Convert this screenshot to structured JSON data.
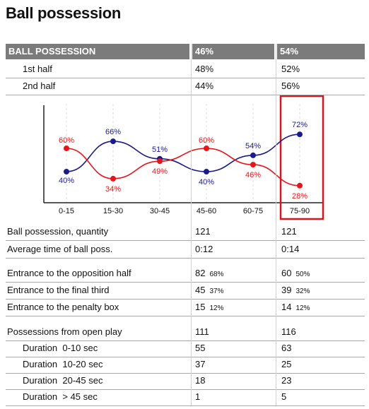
{
  "page": {
    "title": "Ball possession"
  },
  "header": {
    "label": "BALL POSSESSION",
    "team1": "46%",
    "team2": "54%"
  },
  "halves": [
    {
      "label": "1st half",
      "team1": "48%",
      "team2": "52%"
    },
    {
      "label": "2nd half",
      "team1": "44%",
      "team2": "56%"
    }
  ],
  "chart_data": {
    "type": "line",
    "categories": [
      "0-15",
      "15-30",
      "30-45",
      "45-60",
      "60-75",
      "75-90"
    ],
    "series": [
      {
        "values": [
          40,
          66,
          51,
          40,
          54,
          72
        ],
        "labels": [
          "40%",
          "66%",
          "51%",
          "40%",
          "54%",
          "72%"
        ],
        "color": "#1a1a8a"
      },
      {
        "values": [
          60,
          34,
          49,
          60,
          46,
          28
        ],
        "labels": [
          "60%",
          "34%",
          "49%",
          "60%",
          "46%",
          "28%"
        ],
        "color": "#e8141b"
      }
    ],
    "highlighted_category": "75-90",
    "highlight_color": "#d6161e",
    "grid": "vertical dashed",
    "title": "",
    "xlabel": "",
    "ylabel": ""
  },
  "stats_group1": [
    {
      "label": "Ball possession, quantity",
      "team1": "121",
      "team2": "121"
    },
    {
      "label": "Average time of ball poss.",
      "team1": "0:12",
      "team2": "0:14"
    }
  ],
  "stats_group2": [
    {
      "label": "Entrance to the opposition half",
      "team1": "82",
      "team1_pct": "68%",
      "team2": "60",
      "team2_pct": "50%"
    },
    {
      "label": "Entrance to the final third",
      "team1": "45",
      "team1_pct": "37%",
      "team2": "39",
      "team2_pct": "32%"
    },
    {
      "label": "Entrance to the penalty box",
      "team1": "15",
      "team1_pct": "12%",
      "team2": "14",
      "team2_pct": "12%"
    }
  ],
  "stats_group3": [
    {
      "label": "Possessions from open play",
      "team1": "111",
      "team2": "116"
    },
    {
      "label": "Duration  0-10 sec",
      "team1": "55",
      "team2": "63"
    },
    {
      "label": "Duration  10-20 sec",
      "team1": "37",
      "team2": "25"
    },
    {
      "label": "Duration  20-45 sec",
      "team1": "18",
      "team2": "23"
    },
    {
      "label": "Duration  > 45 sec",
      "team1": "1",
      "team2": "5"
    }
  ]
}
